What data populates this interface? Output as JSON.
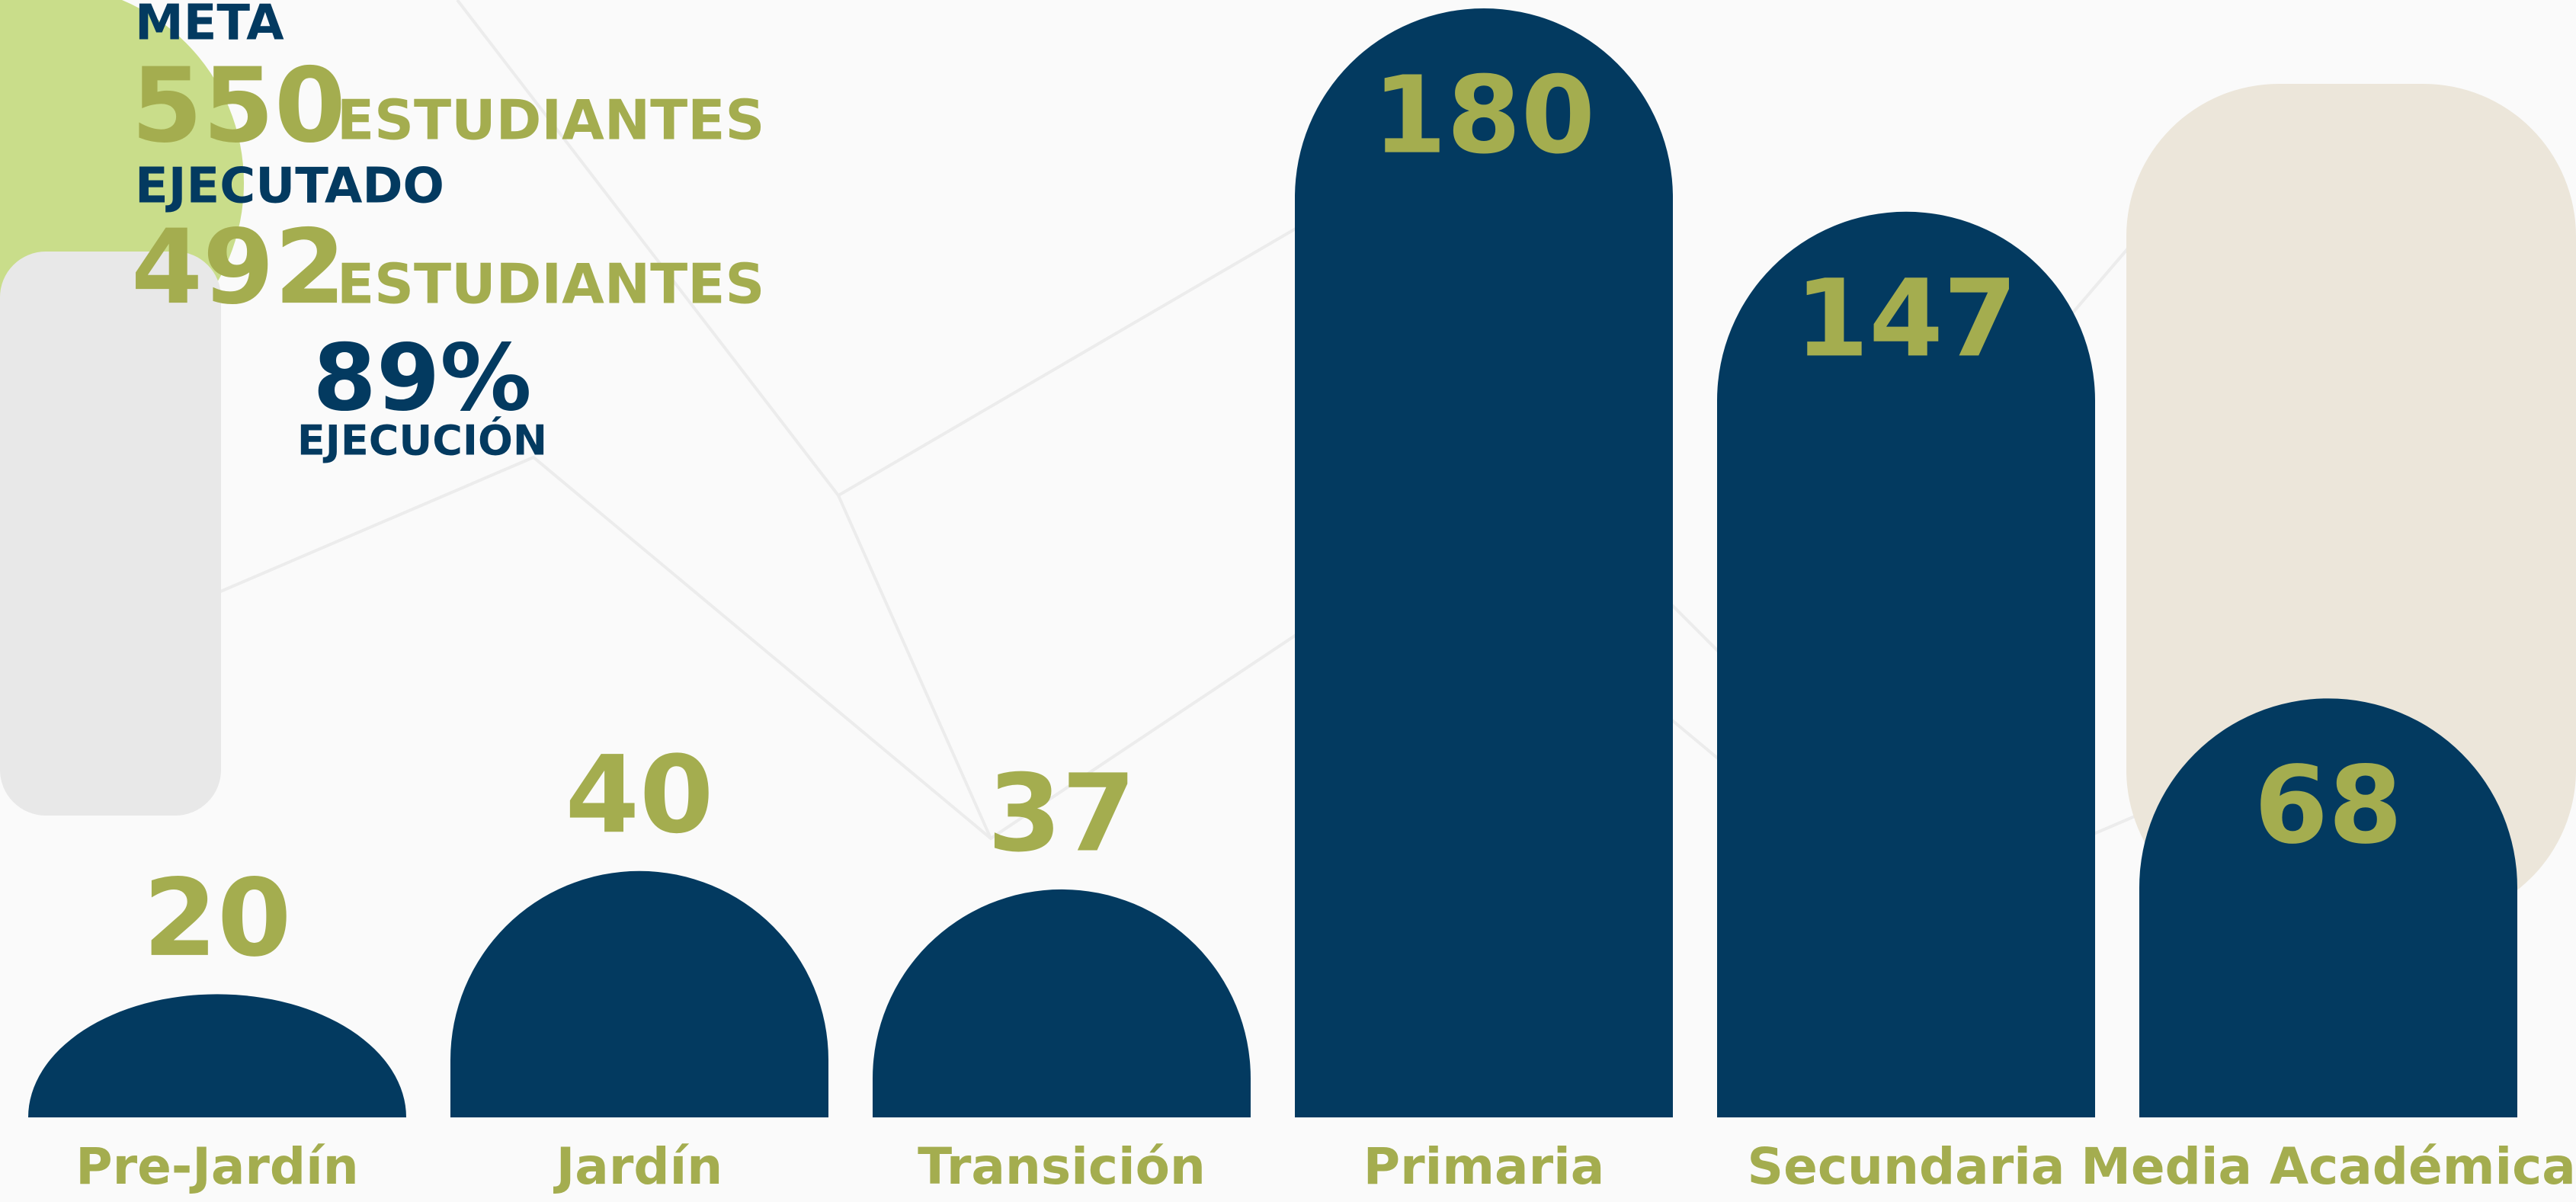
{
  "chart_data": {
    "type": "bar",
    "summary": {
      "goal_label": "META",
      "goal_value": 550,
      "goal_unit": "ESTUDIANTES",
      "done_label": "EJECUTADO",
      "done_value": 492,
      "done_unit": "ESTUDIANTES",
      "rate": {
        "value": 89,
        "label": "89%"
      },
      "rate_label": "EJECUCIÓN"
    },
    "categories": [
      "Pre-Jardín",
      "Jardín",
      "Transición",
      "Primaria",
      "Secundaria",
      "Media Académica"
    ],
    "values": [
      20,
      40,
      37,
      180,
      147,
      68
    ],
    "color": "#033a60",
    "label_color": "#a4ad4f",
    "ylim": [
      0,
      180
    ]
  }
}
